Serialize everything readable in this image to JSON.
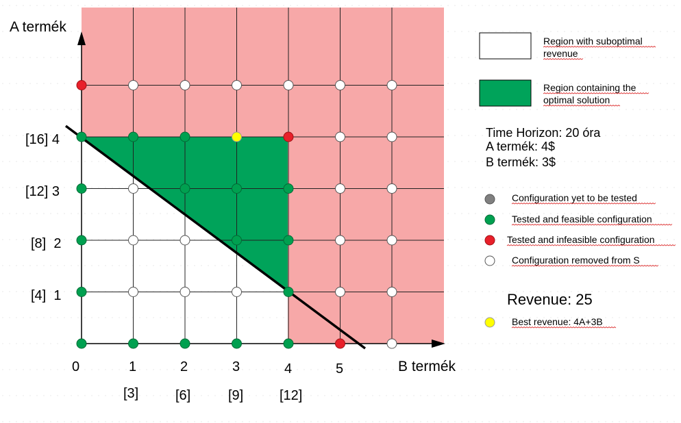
{
  "axes": {
    "y_title": "A termék",
    "x_title": "B termék",
    "x_ticks": [
      "0",
      "1",
      "2",
      "3",
      "4",
      "5"
    ],
    "x_sublabels": [
      "[3]",
      "[6]",
      "[9]",
      "[12]"
    ],
    "y_ticks": [
      "[4]  1",
      "[8]  2",
      "[12] 3",
      "[16] 4"
    ]
  },
  "legend": {
    "white_region": [
      "Region with suboptimal",
      "revenue"
    ],
    "green_region": [
      "Region containing the",
      "optimal solution"
    ],
    "info": [
      "Time Horizon: 20 óra",
      "A termék: 4$",
      "B termék: 3$"
    ],
    "dots": [
      {
        "label": "Configuration yet to be tested",
        "color": "#808080"
      },
      {
        "label": "Tested and feasible configuration",
        "color": "#00a050"
      },
      {
        "label": "Tested and infeasible configuration",
        "color": "#e8202a"
      },
      {
        "label": "Configuration removed from S",
        "color": "#ffffff"
      }
    ],
    "revenue": "Revenue: 25",
    "best": {
      "label": "Best revenue: 4A+3B",
      "color": "#ffff00"
    }
  },
  "colors": {
    "infeasible_region": "#f7a8a8",
    "optimal_region": "#00a35a",
    "feasible_dot": "#00a050",
    "infeasible_dot": "#e8202a",
    "removed_dot": "#ffffff",
    "best_dot": "#ffff00"
  },
  "points": [
    {
      "b": 0,
      "a": 0,
      "s": "feasible"
    },
    {
      "b": 1,
      "a": 0,
      "s": "feasible"
    },
    {
      "b": 2,
      "a": 0,
      "s": "feasible"
    },
    {
      "b": 3,
      "a": 0,
      "s": "feasible"
    },
    {
      "b": 4,
      "a": 0,
      "s": "feasible"
    },
    {
      "b": 5,
      "a": 0,
      "s": "infeasible"
    },
    {
      "b": 6,
      "a": 0,
      "s": "removed"
    },
    {
      "b": 0,
      "a": 1,
      "s": "feasible"
    },
    {
      "b": 1,
      "a": 1,
      "s": "removed"
    },
    {
      "b": 2,
      "a": 1,
      "s": "removed"
    },
    {
      "b": 3,
      "a": 1,
      "s": "removed"
    },
    {
      "b": 4,
      "a": 1,
      "s": "feasible"
    },
    {
      "b": 5,
      "a": 1,
      "s": "removed"
    },
    {
      "b": 6,
      "a": 1,
      "s": "removed"
    },
    {
      "b": 0,
      "a": 2,
      "s": "feasible"
    },
    {
      "b": 1,
      "a": 2,
      "s": "removed"
    },
    {
      "b": 2,
      "a": 2,
      "s": "removed"
    },
    {
      "b": 3,
      "a": 2,
      "s": "feasible"
    },
    {
      "b": 4,
      "a": 2,
      "s": "feasible"
    },
    {
      "b": 5,
      "a": 2,
      "s": "removed"
    },
    {
      "b": 6,
      "a": 2,
      "s": "removed"
    },
    {
      "b": 0,
      "a": 3,
      "s": "feasible"
    },
    {
      "b": 1,
      "a": 3,
      "s": "removed"
    },
    {
      "b": 2,
      "a": 3,
      "s": "feasible"
    },
    {
      "b": 3,
      "a": 3,
      "s": "feasible"
    },
    {
      "b": 4,
      "a": 3,
      "s": "feasible"
    },
    {
      "b": 5,
      "a": 3,
      "s": "removed"
    },
    {
      "b": 6,
      "a": 3,
      "s": "removed"
    },
    {
      "b": 0,
      "a": 4,
      "s": "feasible"
    },
    {
      "b": 1,
      "a": 4,
      "s": "feasible"
    },
    {
      "b": 2,
      "a": 4,
      "s": "feasible"
    },
    {
      "b": 3,
      "a": 4,
      "s": "best"
    },
    {
      "b": 4,
      "a": 4,
      "s": "infeasible"
    },
    {
      "b": 5,
      "a": 4,
      "s": "removed"
    },
    {
      "b": 6,
      "a": 4,
      "s": "removed"
    },
    {
      "b": 0,
      "a": 5,
      "s": "infeasible"
    },
    {
      "b": 1,
      "a": 5,
      "s": "removed"
    },
    {
      "b": 2,
      "a": 5,
      "s": "removed"
    },
    {
      "b": 3,
      "a": 5,
      "s": "removed"
    },
    {
      "b": 4,
      "a": 5,
      "s": "removed"
    },
    {
      "b": 5,
      "a": 5,
      "s": "removed"
    },
    {
      "b": 6,
      "a": 5,
      "s": "removed"
    }
  ]
}
